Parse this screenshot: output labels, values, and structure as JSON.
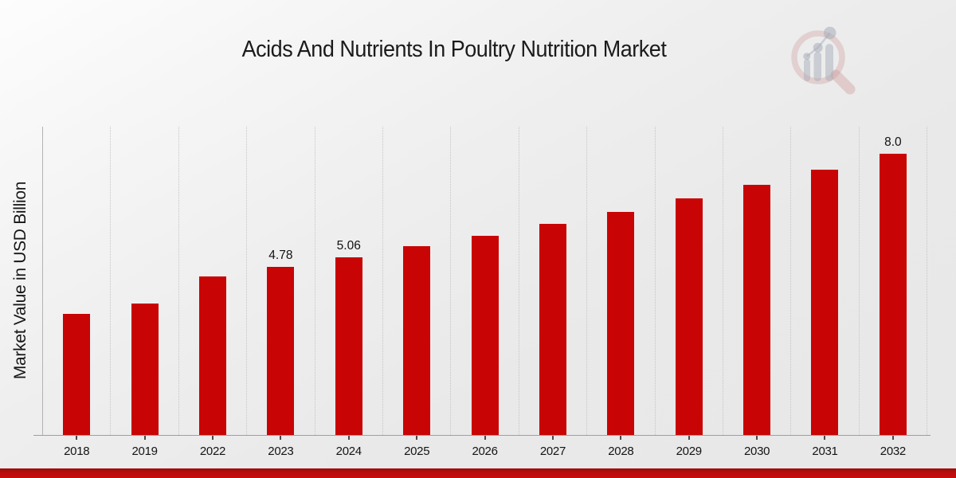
{
  "header": {
    "title": "Acids And Nutrients In Poultry Nutrition Market"
  },
  "axes": {
    "y_label": "Market Value in USD Billion"
  },
  "branding": {
    "logo_name": "market-research-future-watermark"
  },
  "colors": {
    "bar": "#c90404",
    "footer_band": "#bb0c0c",
    "gridline": "#c6c6c6",
    "axis": "#9f9f9f",
    "text": "#1b1b1b",
    "background": "#e9e9e9"
  },
  "chart_data": {
    "type": "bar",
    "title": "Acids And Nutrients In Poultry Nutrition Market",
    "xlabel": "",
    "ylabel": "Market Value in USD Billion",
    "categories": [
      "2018",
      "2019",
      "2022",
      "2023",
      "2024",
      "2025",
      "2026",
      "2027",
      "2028",
      "2029",
      "2030",
      "2031",
      "2032"
    ],
    "values": [
      3.45,
      3.75,
      4.51,
      4.78,
      5.06,
      5.36,
      5.67,
      6.0,
      6.35,
      6.73,
      7.12,
      7.54,
      8.0
    ],
    "data_labels": [
      "",
      "",
      "",
      "4.78",
      "5.06",
      "",
      "",
      "",
      "",
      "",
      "",
      "",
      "8.0"
    ],
    "ylim": [
      0,
      8.77
    ],
    "grid": "vertical dotted gridlines between category bands",
    "legend": "none",
    "bar_color": "#c90404"
  }
}
